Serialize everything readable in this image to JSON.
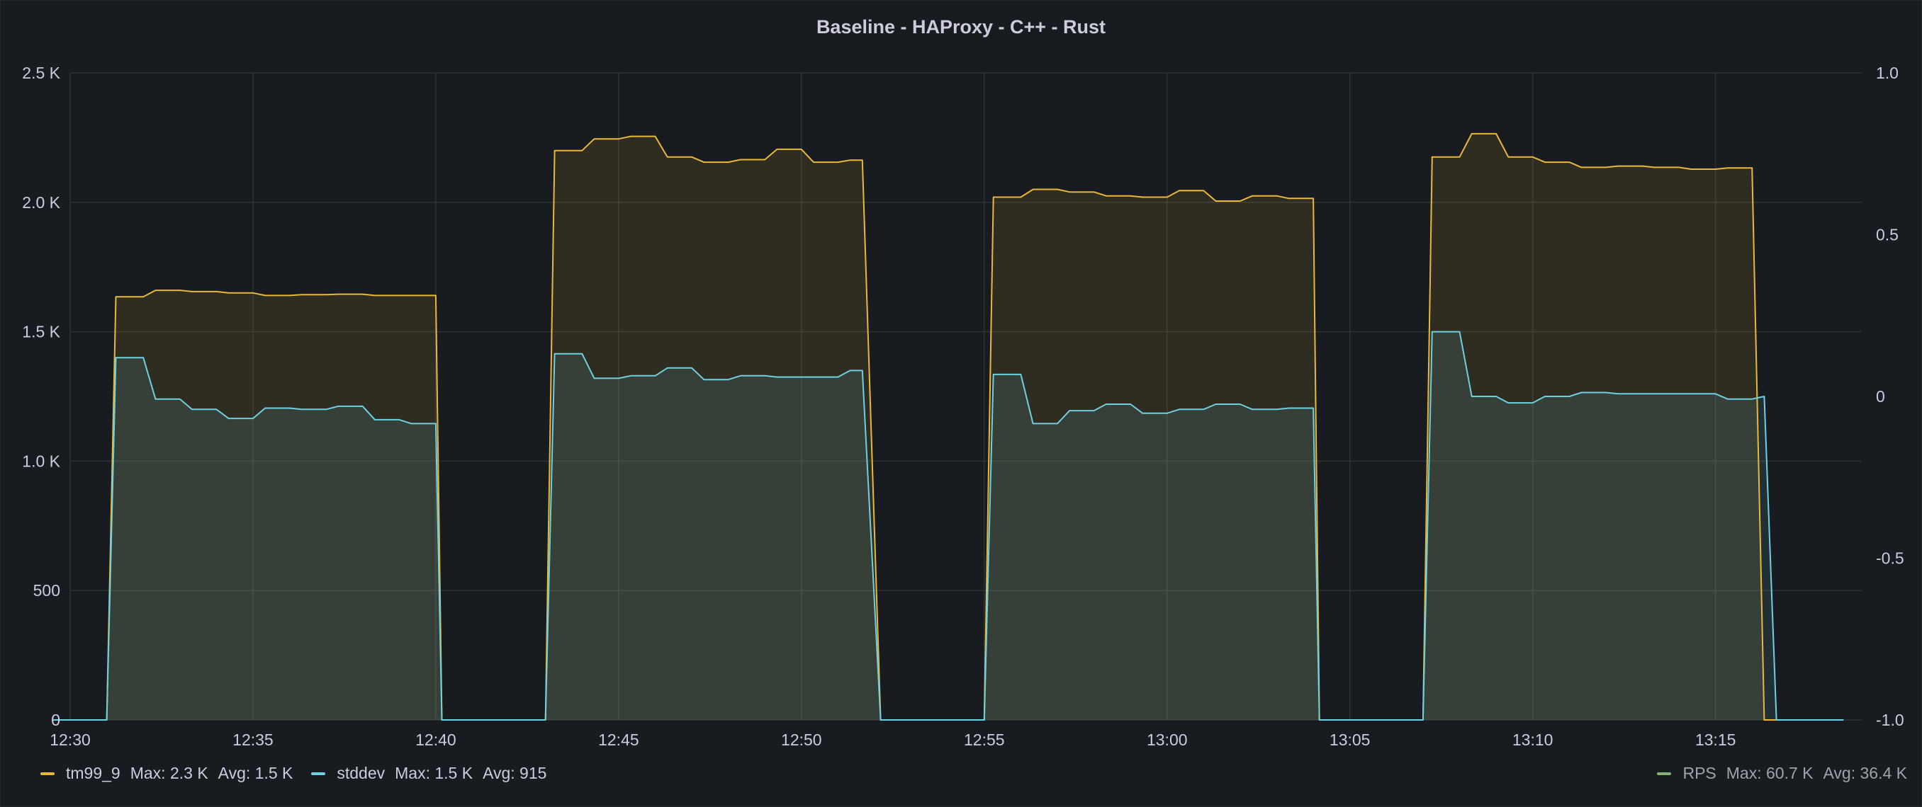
{
  "panel": {
    "title": "Baseline - HAProxy - C++ - Rust"
  },
  "legend": [
    {
      "name": "tm99_9",
      "max": "Max: 2.3 K",
      "avg": "Avg: 1.5 K",
      "color": "#eab839"
    },
    {
      "name": "stddev",
      "max": "Max: 1.5 K",
      "avg": "Avg: 915",
      "color": "#6ed0e0"
    },
    {
      "name": "RPS",
      "max": "Max: 60.7 K",
      "avg": "Avg: 36.4 K",
      "color": "#7eb26d"
    }
  ],
  "chart_data": {
    "type": "area",
    "title": "Baseline - HAProxy - C++ - Rust",
    "x_ticks": [
      "12:30",
      "12:35",
      "12:40",
      "12:45",
      "12:50",
      "12:55",
      "13:00",
      "13:05",
      "13:10",
      "13:15"
    ],
    "x_range": [
      "12:30",
      "13:19"
    ],
    "y_left": {
      "ticks": [
        "0",
        "500",
        "1.0 K",
        "1.5 K",
        "2.0 K",
        "2.5 K"
      ],
      "range": [
        0,
        2500
      ]
    },
    "y_right": {
      "ticks": [
        "-1.0",
        "-0.5",
        "0",
        "0.5",
        "1.0"
      ],
      "range": [
        -1.0,
        1.0
      ]
    },
    "grid": true,
    "series": [
      {
        "name": "tm99_9",
        "color": "#eab839",
        "points": [
          [
            "12:29:30",
            0
          ],
          [
            "12:31:00",
            0
          ],
          [
            "12:31:15",
            1635
          ],
          [
            "12:32:00",
            1635
          ],
          [
            "12:32:20",
            1660
          ],
          [
            "12:33:00",
            1660
          ],
          [
            "12:33:20",
            1655
          ],
          [
            "12:34:00",
            1655
          ],
          [
            "12:34:20",
            1650
          ],
          [
            "12:35:00",
            1650
          ],
          [
            "12:35:20",
            1640
          ],
          [
            "12:36:00",
            1640
          ],
          [
            "12:36:20",
            1643
          ],
          [
            "12:37:00",
            1643
          ],
          [
            "12:37:20",
            1645
          ],
          [
            "12:38:00",
            1645
          ],
          [
            "12:38:20",
            1640
          ],
          [
            "12:39:00",
            1640
          ],
          [
            "12:40:00",
            1640
          ],
          [
            "12:40:10",
            0
          ],
          [
            "12:43:00",
            0
          ],
          [
            "12:43:15",
            2200
          ],
          [
            "12:44:00",
            2200
          ],
          [
            "12:44:20",
            2245
          ],
          [
            "12:45:00",
            2245
          ],
          [
            "12:45:20",
            2255
          ],
          [
            "12:46:00",
            2255
          ],
          [
            "12:46:20",
            2175
          ],
          [
            "12:47:00",
            2175
          ],
          [
            "12:47:20",
            2155
          ],
          [
            "12:48:00",
            2155
          ],
          [
            "12:48:20",
            2165
          ],
          [
            "12:49:00",
            2165
          ],
          [
            "12:49:20",
            2205
          ],
          [
            "12:50:00",
            2205
          ],
          [
            "12:50:20",
            2155
          ],
          [
            "12:51:00",
            2155
          ],
          [
            "12:51:20",
            2163
          ],
          [
            "12:51:40",
            2163
          ],
          [
            "12:52:10",
            0
          ],
          [
            "12:55:00",
            0
          ],
          [
            "12:55:15",
            2020
          ],
          [
            "12:56:00",
            2020
          ],
          [
            "12:56:20",
            2050
          ],
          [
            "12:57:00",
            2050
          ],
          [
            "12:57:20",
            2040
          ],
          [
            "12:58:00",
            2040
          ],
          [
            "12:58:20",
            2025
          ],
          [
            "12:59:00",
            2025
          ],
          [
            "12:59:20",
            2020
          ],
          [
            "13:00:00",
            2020
          ],
          [
            "13:00:20",
            2045
          ],
          [
            "13:01:00",
            2045
          ],
          [
            "13:01:20",
            2005
          ],
          [
            "13:02:00",
            2005
          ],
          [
            "13:02:20",
            2025
          ],
          [
            "13:03:00",
            2025
          ],
          [
            "13:03:20",
            2015
          ],
          [
            "13:04:00",
            2015
          ],
          [
            "13:04:10",
            0
          ],
          [
            "13:07:00",
            0
          ],
          [
            "13:07:15",
            2175
          ],
          [
            "13:08:00",
            2175
          ],
          [
            "13:08:20",
            2265
          ],
          [
            "13:09:00",
            2265
          ],
          [
            "13:09:20",
            2175
          ],
          [
            "13:10:00",
            2175
          ],
          [
            "13:10:20",
            2155
          ],
          [
            "13:11:00",
            2155
          ],
          [
            "13:11:20",
            2135
          ],
          [
            "13:12:00",
            2135
          ],
          [
            "13:12:20",
            2140
          ],
          [
            "13:13:00",
            2140
          ],
          [
            "13:13:20",
            2135
          ],
          [
            "13:14:00",
            2135
          ],
          [
            "13:14:20",
            2128
          ],
          [
            "13:15:00",
            2128
          ],
          [
            "13:15:20",
            2133
          ],
          [
            "13:16:00",
            2133
          ],
          [
            "13:16:20",
            0
          ],
          [
            "13:18:30",
            0
          ]
        ]
      },
      {
        "name": "stddev",
        "color": "#6ed0e0",
        "points": [
          [
            "12:29:30",
            0
          ],
          [
            "12:31:00",
            0
          ],
          [
            "12:31:15",
            1400
          ],
          [
            "12:32:00",
            1400
          ],
          [
            "12:32:20",
            1240
          ],
          [
            "12:33:00",
            1240
          ],
          [
            "12:33:20",
            1200
          ],
          [
            "12:34:00",
            1200
          ],
          [
            "12:34:20",
            1165
          ],
          [
            "12:35:00",
            1165
          ],
          [
            "12:35:20",
            1205
          ],
          [
            "12:36:00",
            1205
          ],
          [
            "12:36:20",
            1200
          ],
          [
            "12:37:00",
            1200
          ],
          [
            "12:37:20",
            1212
          ],
          [
            "12:38:00",
            1212
          ],
          [
            "12:38:20",
            1160
          ],
          [
            "12:39:00",
            1160
          ],
          [
            "12:39:20",
            1145
          ],
          [
            "12:40:00",
            1145
          ],
          [
            "12:40:10",
            0
          ],
          [
            "12:43:00",
            0
          ],
          [
            "12:43:15",
            1415
          ],
          [
            "12:44:00",
            1415
          ],
          [
            "12:44:20",
            1320
          ],
          [
            "12:45:00",
            1320
          ],
          [
            "12:45:20",
            1330
          ],
          [
            "12:46:00",
            1330
          ],
          [
            "12:46:20",
            1360
          ],
          [
            "12:47:00",
            1360
          ],
          [
            "12:47:20",
            1315
          ],
          [
            "12:48:00",
            1315
          ],
          [
            "12:48:20",
            1330
          ],
          [
            "12:49:00",
            1330
          ],
          [
            "12:49:20",
            1325
          ],
          [
            "12:51:00",
            1325
          ],
          [
            "12:51:20",
            1350
          ],
          [
            "12:51:40",
            1350
          ],
          [
            "12:52:10",
            0
          ],
          [
            "12:55:00",
            0
          ],
          [
            "12:55:15",
            1335
          ],
          [
            "12:56:00",
            1335
          ],
          [
            "12:56:20",
            1145
          ],
          [
            "12:57:00",
            1145
          ],
          [
            "12:57:20",
            1195
          ],
          [
            "12:58:00",
            1195
          ],
          [
            "12:58:20",
            1220
          ],
          [
            "12:59:00",
            1220
          ],
          [
            "12:59:20",
            1185
          ],
          [
            "13:00:00",
            1185
          ],
          [
            "13:00:20",
            1200
          ],
          [
            "13:01:00",
            1200
          ],
          [
            "13:01:20",
            1220
          ],
          [
            "13:02:00",
            1220
          ],
          [
            "13:02:20",
            1200
          ],
          [
            "13:03:00",
            1200
          ],
          [
            "13:03:20",
            1205
          ],
          [
            "13:04:00",
            1205
          ],
          [
            "13:04:10",
            0
          ],
          [
            "13:07:00",
            0
          ],
          [
            "13:07:15",
            1500
          ],
          [
            "13:08:00",
            1500
          ],
          [
            "13:08:20",
            1250
          ],
          [
            "13:09:00",
            1250
          ],
          [
            "13:09:20",
            1225
          ],
          [
            "13:10:00",
            1225
          ],
          [
            "13:10:20",
            1250
          ],
          [
            "13:11:00",
            1250
          ],
          [
            "13:11:20",
            1265
          ],
          [
            "13:12:00",
            1265
          ],
          [
            "13:12:20",
            1260
          ],
          [
            "13:15:00",
            1260
          ],
          [
            "13:15:20",
            1240
          ],
          [
            "13:16:00",
            1240
          ],
          [
            "13:16:20",
            1250
          ],
          [
            "13:16:40",
            0
          ],
          [
            "13:18:30",
            0
          ]
        ]
      }
    ]
  }
}
